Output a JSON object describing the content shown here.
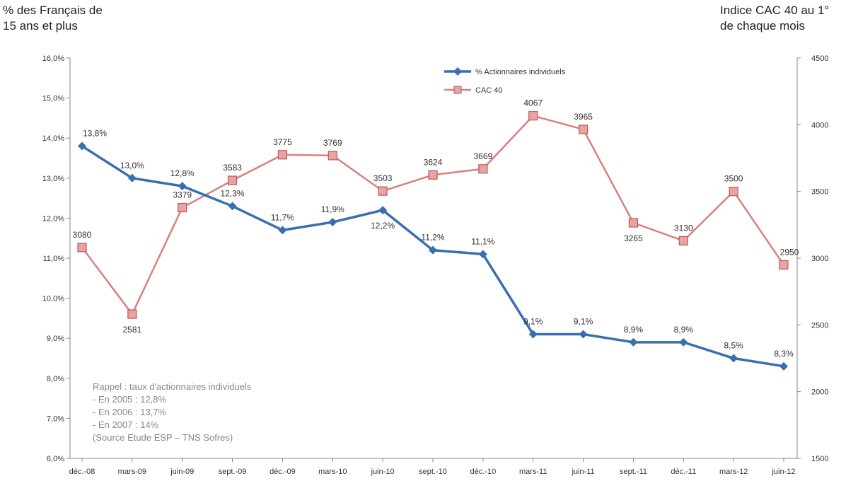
{
  "left_axis_title": [
    "% des Français de",
    "15 ans et plus"
  ],
  "right_axis_title": [
    "Indice CAC 40 au 1°",
    "de chaque mois"
  ],
  "note_lines": [
    "Rappel : taux d'actionnaires individuels",
    "- En 2005 : 12,8%",
    "- En 2006 : 13,7%",
    "- En 2007 : 14%",
    "(Source Etude ESP – TNS Sofres)"
  ],
  "chart_data": {
    "type": "line",
    "categories": [
      "déc.-08",
      "mars-09",
      "juin-09",
      "sept.-09",
      "déc.-09",
      "mars-10",
      "juin-10",
      "sept.-10",
      "déc.-10",
      "mars-11",
      "juin-11",
      "sept.-11",
      "déc.-11",
      "mars-12",
      "juin-12"
    ],
    "y_left": {
      "min": 6.0,
      "max": 16.0,
      "step": 1.0,
      "tick_labels": [
        "6,0%",
        "7,0%",
        "8,0%",
        "9,0%",
        "10,0%",
        "11,0%",
        "12,0%",
        "13,0%",
        "14,0%",
        "15,0%",
        "16,0%"
      ]
    },
    "y_right": {
      "min": 1500,
      "max": 4500,
      "step": 500,
      "tick_labels": [
        "1500",
        "2000",
        "2500",
        "3000",
        "3500",
        "4000",
        "4500"
      ]
    },
    "series": [
      {
        "name": "% Actionnaires individuels",
        "axis": "left",
        "color": "#3a6faf",
        "marker": "diamond",
        "values": [
          13.8,
          13.0,
          12.8,
          12.3,
          11.7,
          11.9,
          12.2,
          11.2,
          11.1,
          9.1,
          9.1,
          8.9,
          8.9,
          8.5,
          8.3
        ],
        "labels": [
          "13,8%",
          "13,0%",
          "12,8%",
          "12,3%",
          "11,7%",
          "11,9%",
          "12,2%",
          "11,2%",
          "11,1%",
          "9,1%",
          "9,1%",
          "8,9%",
          "8,9%",
          "8,5%",
          "8,3%"
        ]
      },
      {
        "name": "CAC 40",
        "axis": "right",
        "color": "#d98080",
        "marker_fill": "#e8a3a3",
        "marker": "square",
        "values": [
          3080,
          2581,
          3379,
          3583,
          3775,
          3769,
          3503,
          3624,
          3669,
          4067,
          3965,
          3265,
          3130,
          3500,
          2950
        ],
        "labels": [
          "3080",
          "2581",
          "3379",
          "3583",
          "3775",
          "3769",
          "3503",
          "3624",
          "3669",
          "4067",
          "3965",
          "3265",
          "3130",
          "3500",
          "2950"
        ]
      }
    ],
    "legend_position": "top-center",
    "grid": false
  }
}
